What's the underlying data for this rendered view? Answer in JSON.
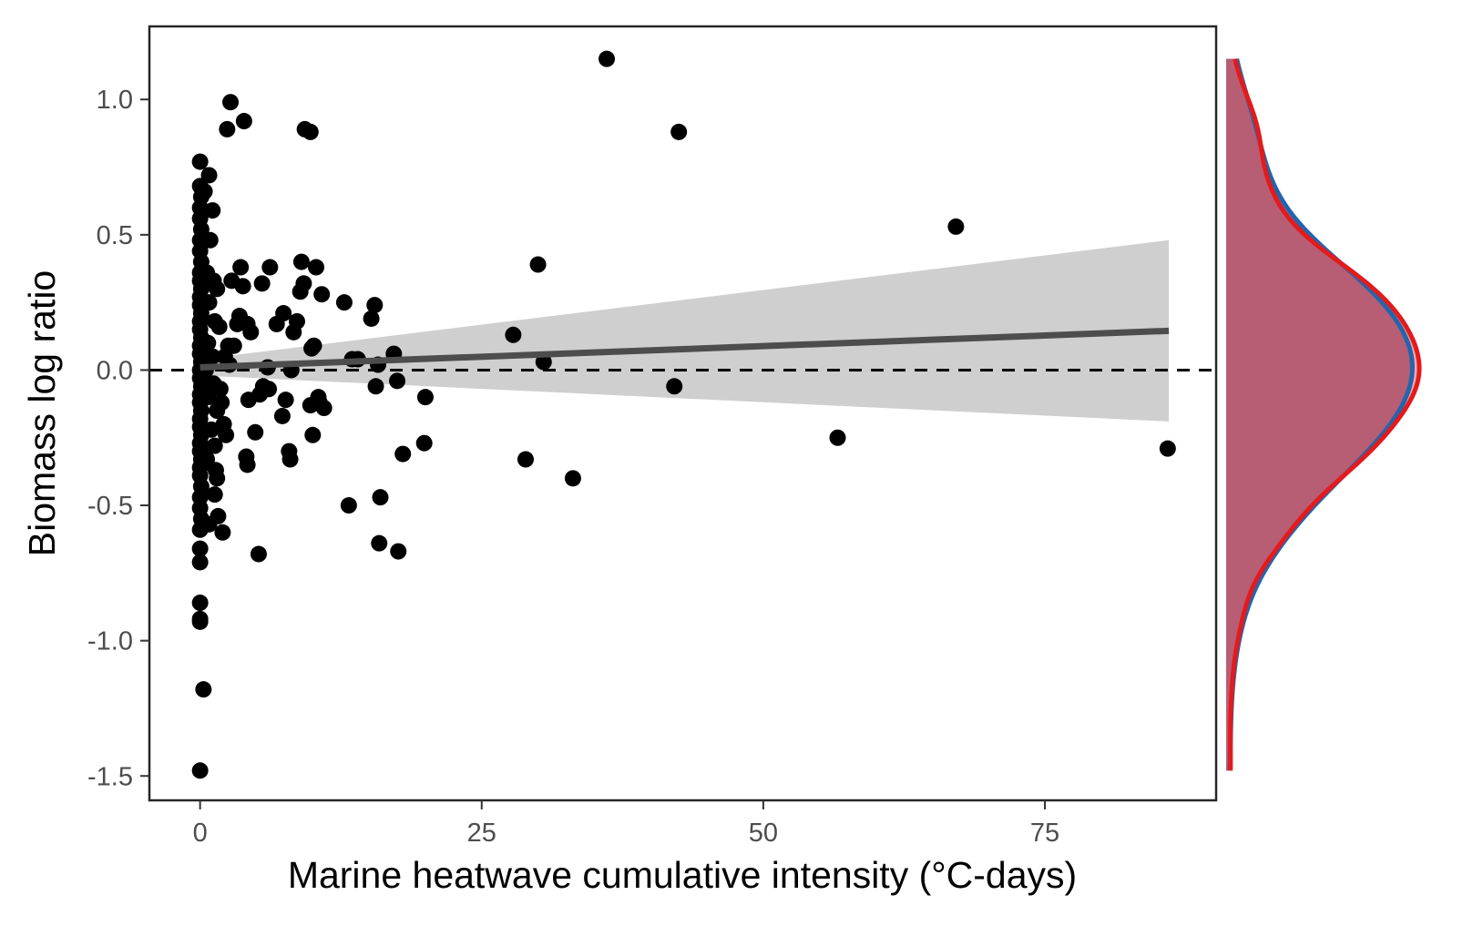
{
  "chart_data": {
    "type": "scatter",
    "title": "",
    "xlabel": "Marine heatwave cumulative intensity (°C-days)",
    "ylabel": "Biomass log ratio",
    "xlim": [
      -4.5,
      90.2
    ],
    "ylim": [
      -1.59,
      1.27
    ],
    "xticks": [
      0,
      25,
      50,
      75
    ],
    "xtick_labels": [
      "0",
      "25",
      "50",
      "75"
    ],
    "yticks": [
      -1.5,
      -1.0,
      -0.5,
      0.0,
      0.5,
      1.0
    ],
    "ytick_labels": [
      "-1.5",
      "-1.0",
      "-0.5",
      "0.0",
      "0.5",
      "1.0"
    ],
    "grid": false,
    "reference_line": {
      "y": 0.0,
      "style": "dashed"
    },
    "fit": {
      "type": "linear",
      "x_range": [
        0,
        86
      ],
      "y_at_start": 0.01,
      "y_at_end": 0.145,
      "ci_lower_at_start": -0.02,
      "ci_upper_at_start": 0.04,
      "ci_lower_at_end": -0.19,
      "ci_upper_at_end": 0.48,
      "line_color": "#4d4d4d",
      "ribbon_color": "#cfcfcf"
    },
    "point_color": "#000000",
    "points": [
      [
        0,
        -1.48
      ],
      [
        0.3,
        -1.18
      ],
      [
        0,
        -0.93
      ],
      [
        0,
        -0.92
      ],
      [
        0,
        -0.86
      ],
      [
        0,
        -0.71
      ],
      [
        0,
        -0.66
      ],
      [
        0,
        -0.59
      ],
      [
        0.1,
        -0.55
      ],
      [
        0,
        -0.51
      ],
      [
        0,
        -0.47
      ],
      [
        0.1,
        -0.43
      ],
      [
        0,
        -0.39
      ],
      [
        0,
        -0.36
      ],
      [
        0.1,
        -0.33
      ],
      [
        0,
        -0.3
      ],
      [
        0,
        -0.27
      ],
      [
        0.1,
        -0.24
      ],
      [
        0,
        -0.21
      ],
      [
        0,
        -0.18
      ],
      [
        0.1,
        -0.15
      ],
      [
        0,
        -0.12
      ],
      [
        0,
        -0.09
      ],
      [
        0.1,
        -0.06
      ],
      [
        0,
        -0.03
      ],
      [
        0,
        0.0
      ],
      [
        0.1,
        0.03
      ],
      [
        0,
        0.06
      ],
      [
        0,
        0.09
      ],
      [
        0.1,
        0.12
      ],
      [
        0,
        0.15
      ],
      [
        0,
        0.18
      ],
      [
        0.1,
        0.21
      ],
      [
        0,
        0.24
      ],
      [
        0,
        0.27
      ],
      [
        0.1,
        0.3
      ],
      [
        0,
        0.33
      ],
      [
        0,
        0.36
      ],
      [
        0.1,
        0.4
      ],
      [
        0,
        0.44
      ],
      [
        0,
        0.48
      ],
      [
        0.1,
        0.52
      ],
      [
        0,
        0.56
      ],
      [
        0,
        0.6
      ],
      [
        0.1,
        0.64
      ],
      [
        0,
        0.68
      ],
      [
        0,
        0.77
      ],
      [
        0.4,
        0.66
      ],
      [
        0.8,
        0.72
      ],
      [
        1.1,
        0.59
      ],
      [
        0.9,
        0.48
      ],
      [
        0.6,
        0.36
      ],
      [
        1.2,
        0.33
      ],
      [
        1.5,
        0.3
      ],
      [
        0.8,
        0.25
      ],
      [
        1.3,
        0.18
      ],
      [
        1.7,
        0.16
      ],
      [
        0.7,
        0.1
      ],
      [
        1.1,
        0.05
      ],
      [
        0.5,
        0.0
      ],
      [
        1.2,
        -0.05
      ],
      [
        0.7,
        -0.1
      ],
      [
        1.8,
        -0.07
      ],
      [
        1.5,
        -0.15
      ],
      [
        1.0,
        -0.22
      ],
      [
        1.3,
        -0.28
      ],
      [
        0.6,
        -0.33
      ],
      [
        1.4,
        -0.37
      ],
      [
        1.5,
        -0.4
      ],
      [
        1.3,
        -0.46
      ],
      [
        1.6,
        -0.54
      ],
      [
        0.8,
        -0.57
      ],
      [
        2.0,
        -0.6
      ],
      [
        2.1,
        -0.2
      ],
      [
        2.3,
        -0.24
      ],
      [
        1.9,
        -0.12
      ],
      [
        2.2,
        0.05
      ],
      [
        2.5,
        0.09
      ],
      [
        2.8,
        0.33
      ],
      [
        2.7,
        0.99
      ],
      [
        2.4,
        0.89
      ],
      [
        3.9,
        0.92
      ],
      [
        3.6,
        0.38
      ],
      [
        3.8,
        0.31
      ],
      [
        3.5,
        0.2
      ],
      [
        3.3,
        0.17
      ],
      [
        4.2,
        0.17
      ],
      [
        4.5,
        0.14
      ],
      [
        3.0,
        0.09
      ],
      [
        2.6,
        0.02
      ],
      [
        4.3,
        -0.11
      ],
      [
        4.1,
        -0.32
      ],
      [
        4.2,
        -0.35
      ],
      [
        4.9,
        -0.23
      ],
      [
        5.3,
        -0.09
      ],
      [
        5.6,
        -0.06
      ],
      [
        5.2,
        -0.68
      ],
      [
        5.5,
        0.32
      ],
      [
        6.2,
        0.38
      ],
      [
        6.0,
        0.01
      ],
      [
        6.1,
        -0.07
      ],
      [
        6.8,
        0.17
      ],
      [
        7.4,
        0.21
      ],
      [
        7.6,
        -0.11
      ],
      [
        7.3,
        -0.17
      ],
      [
        7.9,
        -0.3
      ],
      [
        8.0,
        -0.33
      ],
      [
        8.6,
        0.18
      ],
      [
        8.3,
        0.14
      ],
      [
        8.1,
        0.0
      ],
      [
        9.0,
        0.4
      ],
      [
        8.9,
        0.29
      ],
      [
        9.2,
        0.32
      ],
      [
        9.3,
        0.89
      ],
      [
        9.8,
        0.88
      ],
      [
        10.3,
        0.38
      ],
      [
        9.9,
        0.08
      ],
      [
        10.1,
        0.09
      ],
      [
        10.5,
        -0.1
      ],
      [
        10.6,
        -0.12
      ],
      [
        9.8,
        -0.13
      ],
      [
        10.0,
        -0.24
      ],
      [
        11.0,
        -0.14
      ],
      [
        10.8,
        0.28
      ],
      [
        12.8,
        0.25
      ],
      [
        13.2,
        -0.5
      ],
      [
        13.5,
        0.04
      ],
      [
        14.0,
        0.04
      ],
      [
        15.2,
        0.19
      ],
      [
        15.5,
        0.24
      ],
      [
        15.6,
        -0.06
      ],
      [
        15.8,
        0.02
      ],
      [
        15.9,
        -0.64
      ],
      [
        16.0,
        -0.47
      ],
      [
        17.2,
        0.06
      ],
      [
        17.5,
        -0.04
      ],
      [
        17.6,
        -0.67
      ],
      [
        18.0,
        -0.31
      ],
      [
        20.0,
        -0.1
      ],
      [
        19.9,
        -0.27
      ],
      [
        27.8,
        0.13
      ],
      [
        28.9,
        -0.33
      ],
      [
        30.0,
        0.39
      ],
      [
        30.5,
        0.03
      ],
      [
        33.1,
        -0.4
      ],
      [
        36.1,
        1.15
      ],
      [
        42.1,
        -0.06
      ],
      [
        42.5,
        0.88
      ],
      [
        56.6,
        -0.25
      ],
      [
        67.1,
        0.53
      ],
      [
        85.9,
        -0.29
      ]
    ],
    "density": {
      "placement": "right",
      "series": [
        {
          "color": "#2166ac",
          "fill": "#6f9cc6"
        },
        {
          "color": "#e41a1c",
          "fill": "#f08a92"
        }
      ],
      "overlap_fill": "#b3566f"
    }
  }
}
